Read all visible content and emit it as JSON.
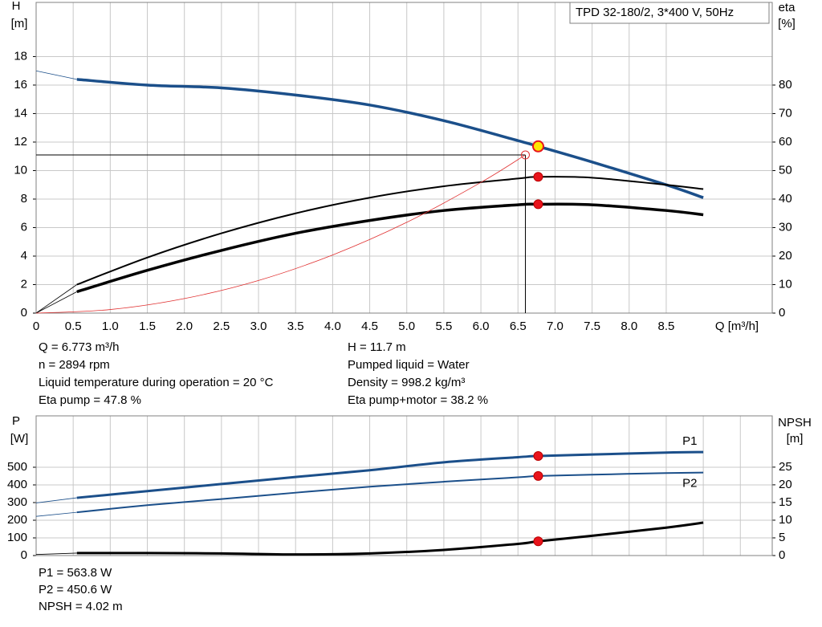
{
  "chart_data": [
    {
      "type": "line",
      "title": "TPD 32-180/2, 3*400 V, 50Hz",
      "y_label": "H",
      "y_unit": "[m]",
      "y2_label": "eta",
      "y2_unit": "[%]",
      "x_label": "Q [m³/h]",
      "xlim": [
        0,
        9.93
      ],
      "ylim": [
        0,
        21.8
      ],
      "y2lim": [
        0,
        109
      ],
      "xticks": [
        0,
        0.5,
        {
          "value": 1,
          "label": "1.0"
        },
        1.5,
        {
          "value": 2,
          "label": "2.0"
        },
        2.5,
        {
          "value": 3,
          "label": "3.0"
        },
        3.5,
        {
          "value": 4,
          "label": "4.0"
        },
        4.5,
        {
          "value": 5,
          "label": "5.0"
        },
        5.5,
        {
          "value": 6,
          "label": "6.0"
        },
        6.5,
        {
          "value": 7,
          "label": "7.0"
        },
        7.5,
        {
          "value": 8,
          "label": "8.0"
        },
        8.5
      ],
      "yticks": [
        0,
        2,
        4,
        6,
        8,
        10,
        12,
        14,
        16,
        18
      ],
      "y2ticks": [
        0,
        10,
        20,
        30,
        40,
        50,
        60,
        70,
        80
      ],
      "grid": true,
      "x": [
        0.55,
        1.5,
        2.5,
        3.5,
        4.5,
        5.5,
        6.5,
        6.773,
        7.5,
        8.5,
        9
      ],
      "series": [
        {
          "color": "#1b4f8a",
          "line_width": 3.5,
          "values": [
            16.4,
            16.0,
            15.8,
            15.3,
            14.6,
            13.5,
            12.1,
            11.7,
            10.6,
            9.0,
            8.1
          ]
        },
        {
          "color": "#1b4f8a",
          "line_width": 0.8,
          "x": [
            0,
            0.55
          ],
          "values": [
            17.0,
            16.4
          ]
        },
        {
          "color": "#000000",
          "line_width": 2,
          "axis": "y2",
          "values": [
            10,
            19.5,
            28,
            35,
            40.5,
            44.5,
            47.2,
            47.8,
            47.5,
            45,
            43.5
          ]
        },
        {
          "color": "#000000",
          "line_width": 0.8,
          "axis": "y2",
          "x": [
            0,
            0.55
          ],
          "values": [
            0,
            10
          ]
        },
        {
          "color": "#000000",
          "line_width": 3.5,
          "axis": "y2",
          "values": [
            7.5,
            15,
            22,
            28,
            32.5,
            36,
            38,
            38.2,
            38,
            36,
            34.5
          ]
        },
        {
          "color": "#000000",
          "line_width": 0.8,
          "axis": "y2",
          "x": [
            0,
            0.55
          ],
          "values": [
            0,
            7.5
          ]
        },
        {
          "color": "#e03030",
          "line_width": 0.8,
          "x": [
            0,
            1,
            2,
            3,
            4,
            5,
            6,
            6.6
          ],
          "values": [
            0,
            0.25,
            1.02,
            2.29,
            4.08,
            6.37,
            9.17,
            11.1
          ]
        }
      ],
      "crosshair": {
        "x": 6.6,
        "y": 11.1
      },
      "duty_point": {
        "x": 6.773,
        "y": 11.7
      },
      "markers": [
        {
          "x": 6.773,
          "y": 47.8,
          "axis": "y2"
        },
        {
          "x": 6.773,
          "y": 38.2,
          "axis": "y2"
        }
      ],
      "notes_left": [
        "Q = 6.773 m³/h",
        "n = 2894 rpm",
        "Liquid temperature during operation = 20 °C",
        "Eta pump = 47.8 %"
      ],
      "notes_right": [
        "H = 11.7 m",
        "Pumped liquid = Water",
        "Density = 998.2 kg/m³",
        "Eta pump+motor = 38.2 %"
      ]
    },
    {
      "type": "line",
      "y_label": "P",
      "y_unit": "[W]",
      "y2_label": "NPSH",
      "y2_unit": "[m]",
      "xlim": [
        0,
        9.93
      ],
      "ylim": [
        0,
        791
      ],
      "y2lim": [
        0,
        39.5
      ],
      "xgrid": [
        0.5,
        1,
        1.5,
        2,
        2.5,
        3,
        3.5,
        4,
        4.5,
        5,
        5.5,
        6,
        6.5,
        7,
        7.5,
        8,
        8.5,
        9,
        9.5
      ],
      "yticks": [
        0,
        100,
        200,
        300,
        400,
        500
      ],
      "y2ticks": [
        0,
        5,
        10,
        15,
        20,
        25
      ],
      "grid": true,
      "x": [
        0.55,
        1.5,
        2.5,
        3.5,
        4.5,
        5.5,
        6.5,
        6.773,
        7.5,
        8.5,
        9
      ],
      "series": [
        {
          "name": "P1",
          "color": "#1b4f8a",
          "line_width": 3,
          "values": [
            327,
            365,
            405,
            445,
            483,
            528,
            557,
            563.8,
            572,
            583,
            586
          ]
        },
        {
          "color": "#1b4f8a",
          "line_width": 0.8,
          "x": [
            0,
            0.55
          ],
          "values": [
            298,
            327
          ]
        },
        {
          "name": "P2",
          "color": "#1b4f8a",
          "line_width": 2,
          "values": [
            245,
            285,
            320,
            356,
            390,
            418,
            443,
            450.6,
            458,
            467,
            470
          ]
        },
        {
          "color": "#1b4f8a",
          "line_width": 0.8,
          "x": [
            0,
            0.55
          ],
          "values": [
            222,
            245
          ]
        },
        {
          "color": "#000000",
          "line_width": 3,
          "axis": "y2",
          "values": [
            0.7,
            0.7,
            0.6,
            0.3,
            0.6,
            1.6,
            3.3,
            4.02,
            5.6,
            7.9,
            9.3
          ]
        },
        {
          "color": "#000000",
          "line_width": 0.8,
          "axis": "y2",
          "x": [
            0,
            0.55
          ],
          "values": [
            0.3,
            0.7
          ]
        }
      ],
      "markers": [
        {
          "x": 6.773,
          "y": 563.8
        },
        {
          "x": 6.773,
          "y": 450.6
        },
        {
          "x": 6.773,
          "y": 4.02,
          "axis": "y2"
        }
      ],
      "notes_left": [
        "P1 = 563.8 W",
        "P2 = 450.6 W",
        "NPSH = 4.02 m"
      ]
    }
  ]
}
